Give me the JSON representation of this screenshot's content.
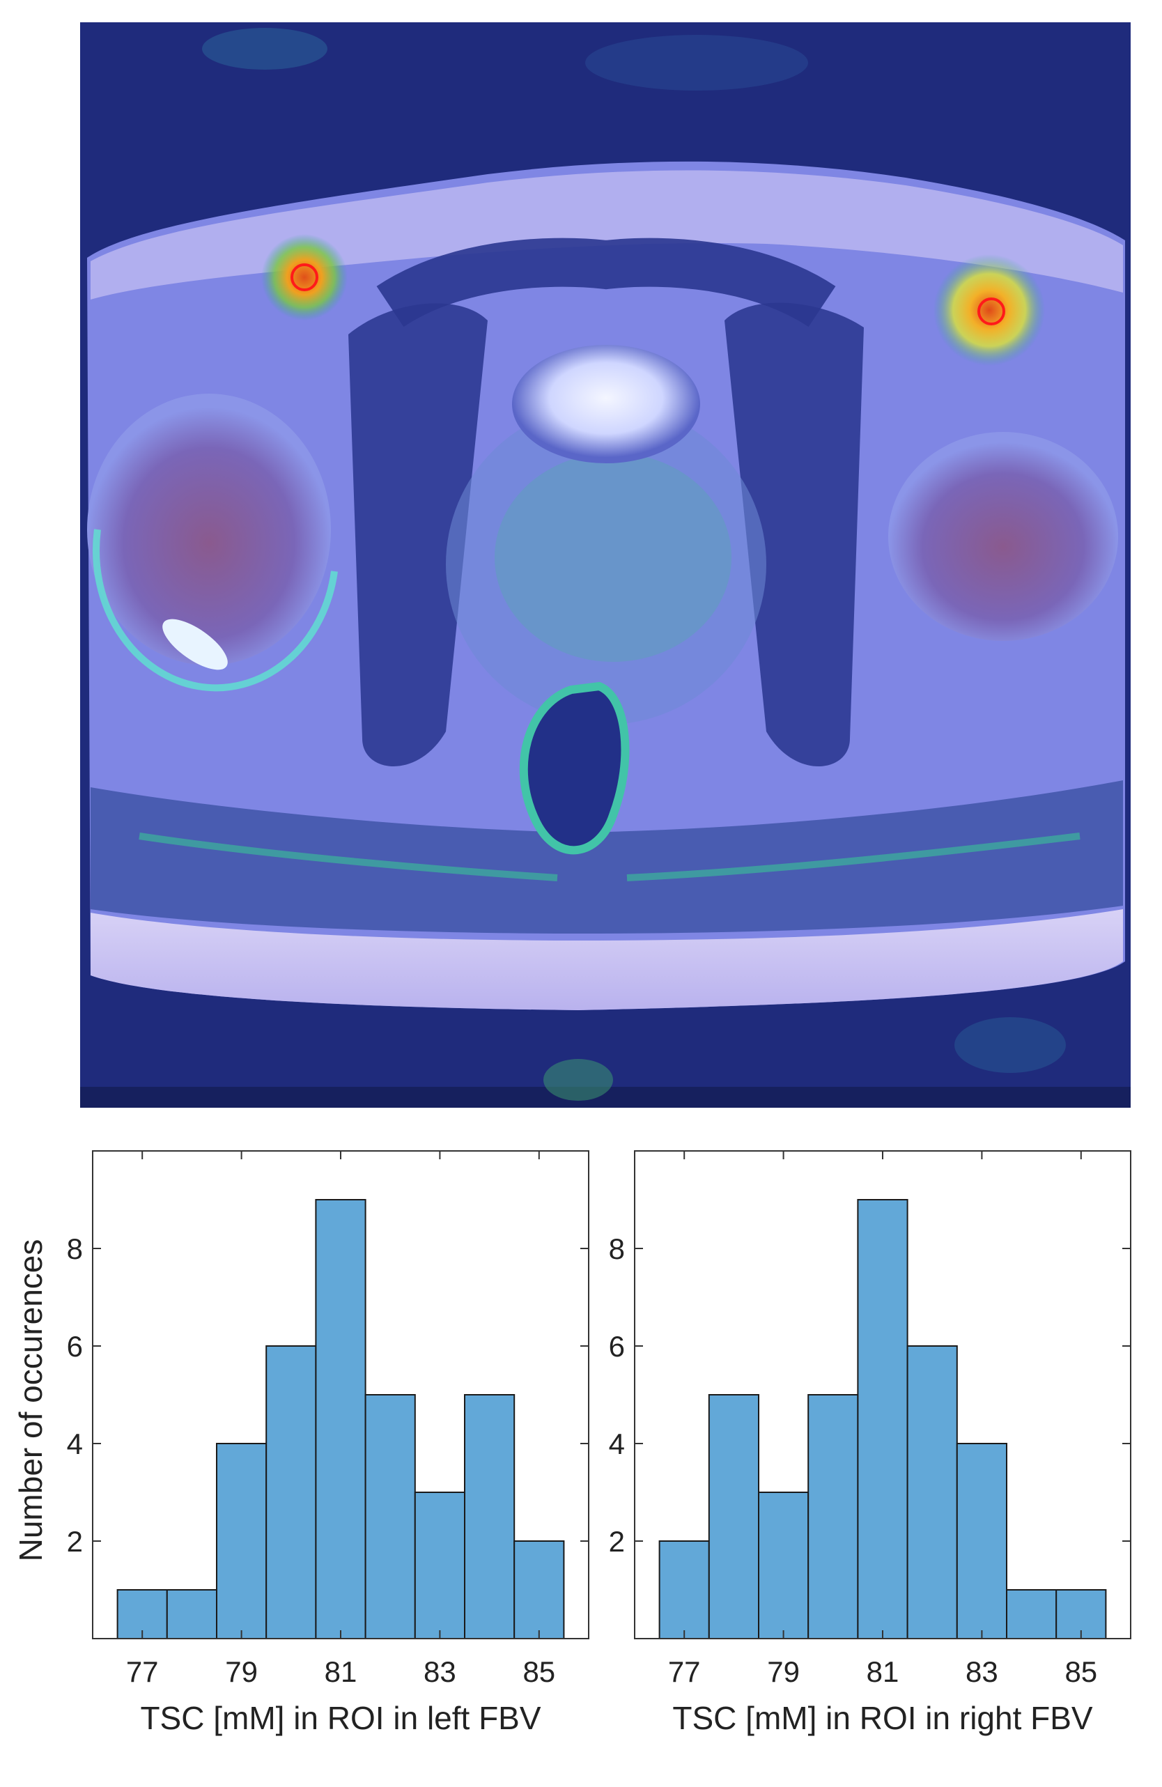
{
  "image_panel": {
    "description_icon": "mri-axial-pelvis-sodium-overlay",
    "colors": {
      "background": "#1e2a78",
      "tissue": "#7d86e6",
      "hotspot": "#f3a020",
      "roi": "#ff1a1a"
    }
  },
  "chart_data": [
    {
      "type": "bar",
      "title": "",
      "xlabel": "TSC [mM] in ROI in left FBV",
      "ylabel": "Number of occurences",
      "bin_edges": [
        76.5,
        77.5,
        78.5,
        79.5,
        80.5,
        81.5,
        82.5,
        83.5,
        84.5,
        85.5
      ],
      "values": [
        1,
        1,
        4,
        6,
        9,
        5,
        3,
        5,
        2
      ],
      "xticks": [
        77,
        79,
        81,
        83,
        85
      ],
      "yticks": [
        2,
        4,
        6,
        8
      ],
      "xlim": [
        76,
        86
      ],
      "ylim": [
        0,
        10
      ],
      "bar_color": "#62a8d8",
      "grid": false
    },
    {
      "type": "bar",
      "title": "",
      "xlabel": "TSC [mM] in ROI in right FBV",
      "ylabel": "",
      "bin_edges": [
        76.5,
        77.5,
        78.5,
        79.5,
        80.5,
        81.5,
        82.5,
        83.5,
        84.5,
        85.5
      ],
      "values": [
        2,
        5,
        3,
        5,
        9,
        6,
        4,
        1,
        1
      ],
      "xticks": [
        77,
        79,
        81,
        83,
        85
      ],
      "yticks": [
        2,
        4,
        6,
        8
      ],
      "xlim": [
        76,
        86
      ],
      "ylim": [
        0,
        10
      ],
      "bar_color": "#62a8d8",
      "grid": false
    }
  ]
}
